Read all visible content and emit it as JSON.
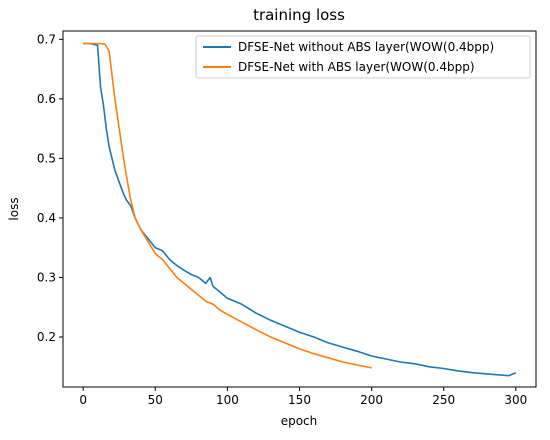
{
  "chart_data": {
    "type": "line",
    "title": "training loss",
    "xlabel": "epoch",
    "ylabel": "loss",
    "xlim": [
      -14,
      314
    ],
    "ylim": [
      0.116,
      0.714
    ],
    "xticks": [
      0,
      50,
      100,
      150,
      200,
      250,
      300
    ],
    "yticks": [
      0.2,
      0.3,
      0.4,
      0.5,
      0.6,
      0.7
    ],
    "ytick_labels": [
      "0.2",
      "0.3",
      "0.4",
      "0.5",
      "0.6",
      "0.7"
    ],
    "grid": false,
    "legend_position": "top-right",
    "series": [
      {
        "name": "DFSE-Net without ABS layer(WOW(0.4bpp)",
        "color": "#1f77b4",
        "x": [
          0,
          5,
          10,
          12,
          14,
          16,
          18,
          20,
          22,
          25,
          28,
          30,
          33,
          36,
          40,
          45,
          50,
          55,
          60,
          65,
          70,
          75,
          80,
          85,
          88,
          90,
          95,
          100,
          110,
          120,
          130,
          140,
          150,
          160,
          170,
          180,
          190,
          200,
          210,
          220,
          230,
          240,
          250,
          260,
          270,
          280,
          290,
          295,
          300
        ],
        "y": [
          0.693,
          0.693,
          0.69,
          0.62,
          0.59,
          0.55,
          0.52,
          0.5,
          0.48,
          0.46,
          0.44,
          0.43,
          0.42,
          0.4,
          0.38,
          0.365,
          0.35,
          0.345,
          0.33,
          0.32,
          0.312,
          0.305,
          0.3,
          0.29,
          0.3,
          0.285,
          0.275,
          0.265,
          0.255,
          0.24,
          0.228,
          0.218,
          0.208,
          0.2,
          0.19,
          0.183,
          0.176,
          0.168,
          0.163,
          0.158,
          0.155,
          0.15,
          0.147,
          0.143,
          0.14,
          0.138,
          0.136,
          0.135,
          0.14
        ]
      },
      {
        "name": "DFSE-Net with ABS layer(WOW(0.4bpp)",
        "color": "#ff7f0e",
        "x": [
          0,
          10,
          15,
          18,
          20,
          22,
          25,
          28,
          30,
          33,
          36,
          40,
          45,
          50,
          55,
          60,
          65,
          70,
          75,
          80,
          85,
          90,
          95,
          100,
          110,
          120,
          130,
          140,
          150,
          160,
          170,
          180,
          190,
          200
        ],
        "y": [
          0.693,
          0.693,
          0.692,
          0.68,
          0.64,
          0.6,
          0.55,
          0.5,
          0.47,
          0.43,
          0.4,
          0.38,
          0.36,
          0.34,
          0.33,
          0.315,
          0.3,
          0.29,
          0.28,
          0.27,
          0.26,
          0.255,
          0.245,
          0.238,
          0.225,
          0.212,
          0.2,
          0.19,
          0.18,
          0.172,
          0.165,
          0.158,
          0.153,
          0.148
        ]
      }
    ]
  }
}
